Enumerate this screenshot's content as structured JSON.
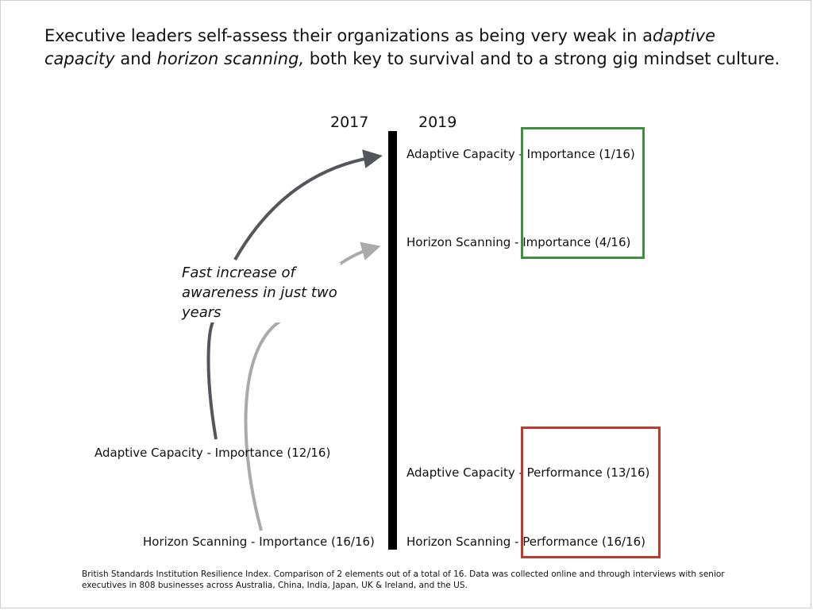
{
  "headline": {
    "part1": "Executive leaders self-assess their organizations as being very weak in a",
    "italic1": "daptive capacity",
    "part2": " and ",
    "italic2": "horizon scanning,",
    "part3": " both key to survival and to a strong gig mindset culture."
  },
  "years": {
    "left": "2017",
    "right": "2019"
  },
  "labels_2017": {
    "adaptive_importance": "Adaptive Capacity - Importance (12/16)",
    "horizon_importance": "Horizon Scanning - Importance (16/16)"
  },
  "labels_2019": {
    "adaptive_importance": "Adaptive Capacity - Importance (1/16)",
    "horizon_importance": "Horizon Scanning - Importance (4/16)",
    "adaptive_performance": "Adaptive Capacity - Performance (13/16)",
    "horizon_performance": "Horizon Scanning - Performance (16/16)"
  },
  "annotation": "Fast increase of awareness in just two years",
  "source": "British Standards Institution Resilience Index. Comparison of 2 elements out of a total of 16. Data was collected online and through interviews with senior executives in 808 businesses across Australia, China, India, Japan, UK & Ireland, and the US.",
  "colors": {
    "arrow_dark": "#55565c",
    "arrow_light": "#aaaaaa",
    "frame_importance": "#3f8f3f",
    "frame_performance": "#c03a2b",
    "timeline": "#000000"
  }
}
